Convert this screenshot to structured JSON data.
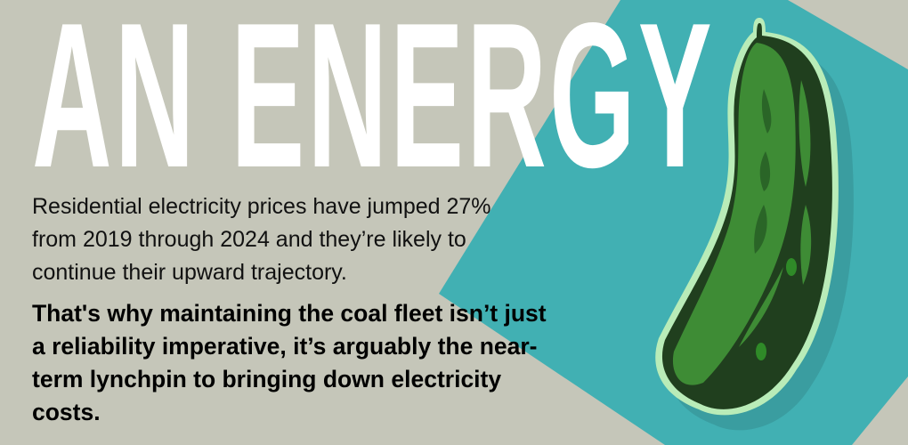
{
  "headline": "AN ENERGY",
  "paragraph": {
    "lines": [
      "Residential electricity prices have jumped 27%",
      "from 2019 through 2024 and they’re likely to",
      "continue their upward trajectory."
    ]
  },
  "emphasis": {
    "lines": [
      "That's why maintaining the coal fleet isn’t just",
      "a reliability imperative, it’s arguably the near-",
      "term lynchpin to bringing down electricity",
      "costs."
    ]
  },
  "illustration": "pickle-icon",
  "colors": {
    "background": "#c5c6b9",
    "accent": "#41b0b3",
    "pickle": "#3e8c35",
    "pickle_dark": "#203f1e",
    "outline": "#b9ecb8"
  }
}
